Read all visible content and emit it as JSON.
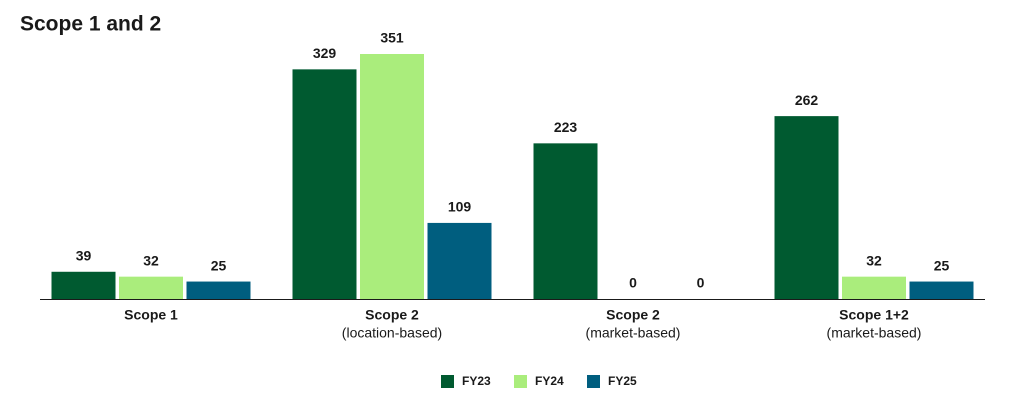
{
  "chart_data": {
    "type": "bar",
    "title": "Scope 1 and 2",
    "categories": [
      "Scope 1",
      "Scope 2",
      "Scope 2",
      "Scope 1+2"
    ],
    "category_notes": [
      null,
      "(location-based)",
      "(market-based)",
      "(market-based)"
    ],
    "series": [
      {
        "name": "FY23",
        "color": "#005a30",
        "values": [
          39,
          329,
          223,
          262
        ]
      },
      {
        "name": "FY24",
        "color": "#aaed7c",
        "values": [
          32,
          351,
          0,
          32
        ]
      },
      {
        "name": "FY25",
        "color": "#005e7f",
        "values": [
          25,
          109,
          0,
          25
        ]
      }
    ]
  }
}
